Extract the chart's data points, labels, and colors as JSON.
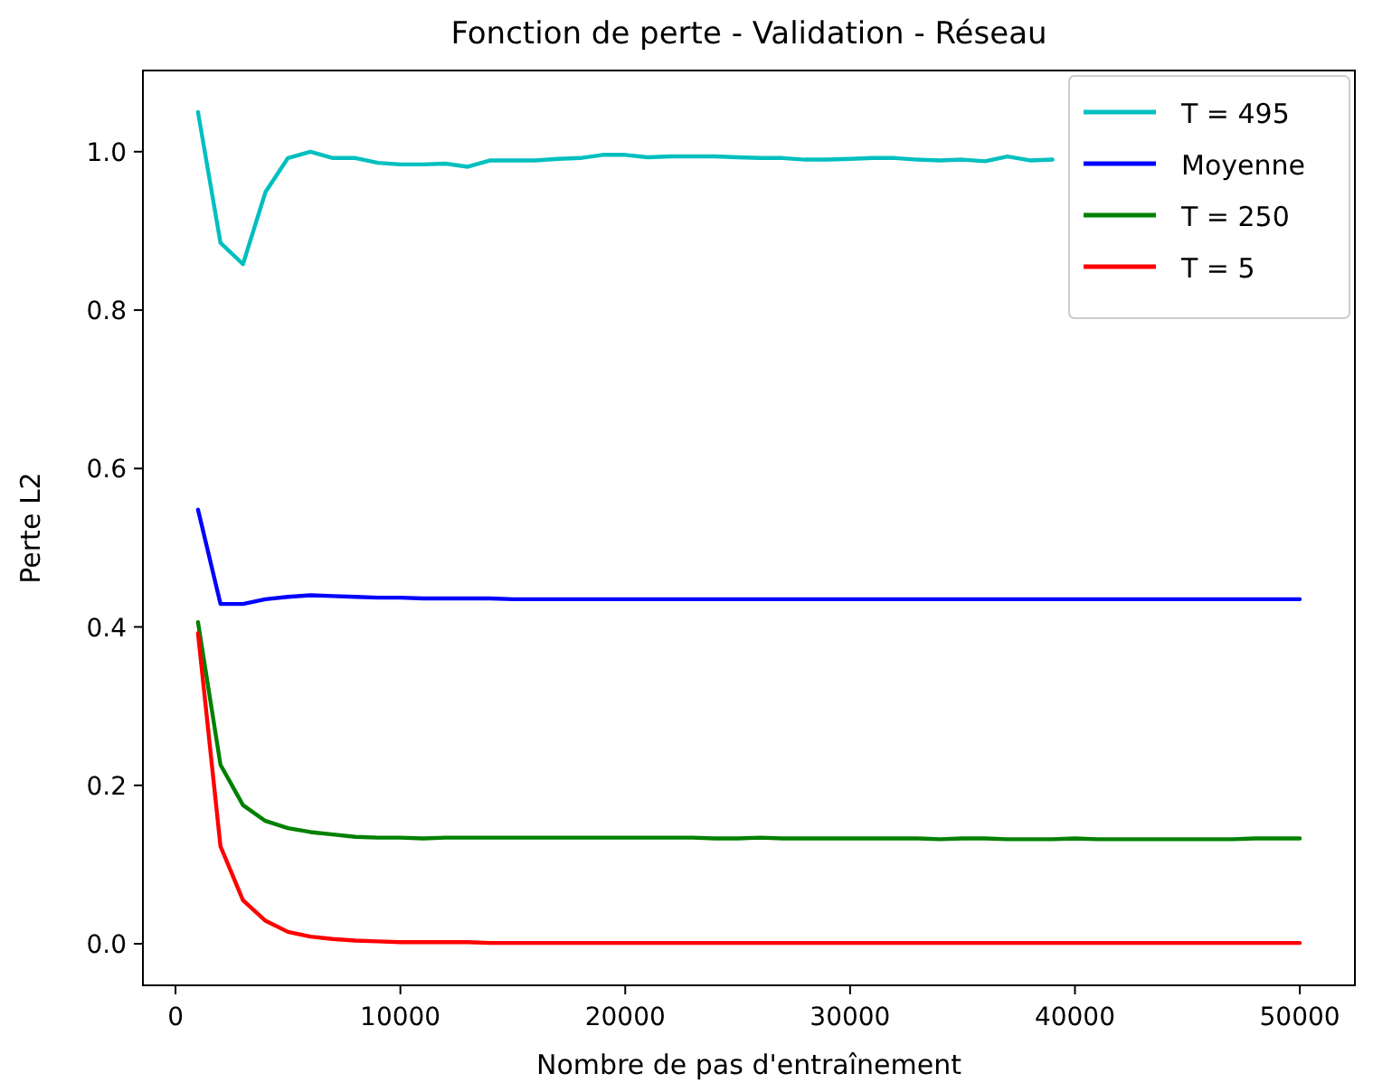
{
  "chart_data": {
    "type": "line",
    "title": "Fonction de perte - Validation - Réseau",
    "xlabel": "Nombre de pas d'entraînement",
    "ylabel": "Perte L2",
    "x": [
      1000,
      2000,
      3000,
      4000,
      5000,
      6000,
      7000,
      8000,
      9000,
      10000,
      11000,
      12000,
      13000,
      14000,
      15000,
      16000,
      17000,
      18000,
      19000,
      20000,
      21000,
      22000,
      23000,
      24000,
      25000,
      26000,
      27000,
      28000,
      29000,
      30000,
      31000,
      32000,
      33000,
      34000,
      35000,
      36000,
      37000,
      38000,
      39000,
      40000,
      41000,
      42000,
      43000,
      44000,
      45000,
      46000,
      47000,
      48000,
      49000,
      50000
    ],
    "series": [
      {
        "name": "T = 495",
        "color": "#00bfbf",
        "values": [
          1.05,
          0.885,
          0.858,
          0.949,
          0.992,
          1.0,
          0.992,
          0.992,
          0.986,
          0.984,
          0.984,
          0.985,
          0.981,
          0.989,
          0.989,
          0.989,
          0.991,
          0.992,
          0.996,
          0.996,
          0.993,
          0.994,
          0.994,
          0.994,
          0.993,
          0.992,
          0.992,
          0.99,
          0.99,
          0.991,
          0.992,
          0.992,
          0.99,
          0.989,
          0.99,
          0.988,
          0.994,
          0.989,
          0.99,
          null,
          null,
          null,
          null,
          null,
          null,
          null,
          null,
          null,
          null,
          null
        ]
      },
      {
        "name": "Moyenne",
        "color": "#0000ff",
        "values": [
          0.548,
          0.429,
          0.429,
          0.435,
          0.438,
          0.44,
          0.439,
          0.438,
          0.437,
          0.437,
          0.436,
          0.436,
          0.436,
          0.436,
          0.435,
          0.435,
          0.435,
          0.435,
          0.435,
          0.435,
          0.435,
          0.435,
          0.435,
          0.435,
          0.435,
          0.435,
          0.435,
          0.435,
          0.435,
          0.435,
          0.435,
          0.435,
          0.435,
          0.435,
          0.435,
          0.435,
          0.435,
          0.435,
          0.435,
          0.435,
          0.435,
          0.435,
          0.435,
          0.435,
          0.435,
          0.435,
          0.435,
          0.435,
          0.435,
          0.435
        ]
      },
      {
        "name": "T = 250",
        "color": "#008000",
        "values": [
          0.406,
          0.226,
          0.175,
          0.155,
          0.146,
          0.141,
          0.138,
          0.135,
          0.134,
          0.134,
          0.133,
          0.134,
          0.134,
          0.134,
          0.134,
          0.134,
          0.134,
          0.134,
          0.134,
          0.134,
          0.134,
          0.134,
          0.134,
          0.133,
          0.133,
          0.134,
          0.133,
          0.133,
          0.133,
          0.133,
          0.133,
          0.133,
          0.133,
          0.132,
          0.133,
          0.133,
          0.132,
          0.132,
          0.132,
          0.133,
          0.132,
          0.132,
          0.132,
          0.132,
          0.132,
          0.132,
          0.132,
          0.133,
          0.133,
          0.133
        ]
      },
      {
        "name": "T = 5",
        "color": "#ff0000",
        "values": [
          0.392,
          0.123,
          0.055,
          0.029,
          0.015,
          0.009,
          0.006,
          0.004,
          0.003,
          0.002,
          0.002,
          0.002,
          0.002,
          0.001,
          0.001,
          0.001,
          0.001,
          0.001,
          0.001,
          0.001,
          0.001,
          0.001,
          0.001,
          0.001,
          0.001,
          0.001,
          0.001,
          0.001,
          0.001,
          0.001,
          0.001,
          0.001,
          0.001,
          0.001,
          0.001,
          0.001,
          0.001,
          0.001,
          0.001,
          0.001,
          0.001,
          0.001,
          0.001,
          0.001,
          0.001,
          0.001,
          0.001,
          0.001,
          0.001,
          0.001
        ]
      }
    ],
    "xlim": [
      -1450,
      52450
    ],
    "xticks": [
      0,
      10000,
      20000,
      30000,
      40000,
      50000
    ],
    "ylim": [
      -0.0525,
      1.1025
    ],
    "yticks": [
      {
        "value": 0,
        "label": "0.0"
      },
      {
        "value": 0.2,
        "label": "0.2"
      },
      {
        "value": 0.4,
        "label": "0.4"
      },
      {
        "value": 0.6,
        "label": "0.6"
      },
      {
        "value": 0.8,
        "label": "0.8"
      },
      {
        "value": 1,
        "label": "1.0"
      }
    ],
    "legend": "top right",
    "grid": false
  }
}
